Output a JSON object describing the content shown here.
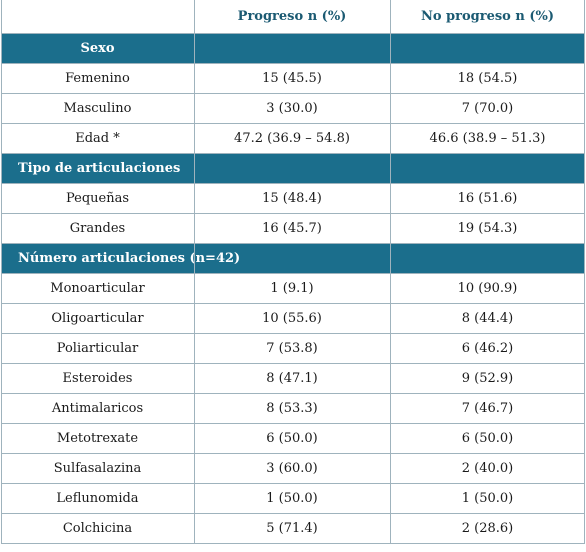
{
  "header": {
    "col2": "Progreso n (%)",
    "col3": "No progreso n (%)"
  },
  "sections": [
    {
      "title": "Sexo",
      "rows": [
        {
          "label": "Femenino",
          "progreso": "15 (45.5)",
          "no_progreso": "18 (54.5)"
        },
        {
          "label": "Masculino",
          "progreso": "3 (30.0)",
          "no_progreso": "7 (70.0)"
        },
        {
          "label": "Edad *",
          "progreso": "47.2 (36.9 – 54.8)",
          "no_progreso": "46.6 (38.9 – 51.3)"
        }
      ]
    },
    {
      "title": "Tipo de articulaciones",
      "rows": [
        {
          "label": "Pequeñas",
          "progreso": "15 (48.4)",
          "no_progreso": "16 (51.6)"
        },
        {
          "label": "Grandes",
          "progreso": "16 (45.7)",
          "no_progreso": "19 (54.3)"
        }
      ]
    },
    {
      "title": "Número articulaciones (n=42)",
      "rows": [
        {
          "label": "Monoarticular",
          "progreso": "1 (9.1)",
          "no_progreso": "10 (90.9)"
        },
        {
          "label": "Oligoarticular",
          "progreso": "10 (55.6)",
          "no_progreso": "8 (44.4)"
        },
        {
          "label": "Poliarticular",
          "progreso": "7 (53.8)",
          "no_progreso": "6 (46.2)"
        },
        {
          "label": "Esteroides",
          "progreso": "8 (47.1)",
          "no_progreso": "9 (52.9)"
        },
        {
          "label": "Antimalaricos",
          "progreso": "8 (53.3)",
          "no_progreso": "7 (46.7)"
        },
        {
          "label": "Metotrexate",
          "progreso": "6 (50.0)",
          "no_progreso": "6 (50.0)"
        },
        {
          "label": "Sulfasalazina",
          "progreso": "3 (60.0)",
          "no_progreso": "2 (40.0)"
        },
        {
          "label": "Leflunomida",
          "progreso": "1 (50.0)",
          "no_progreso": "1 (50.0)"
        },
        {
          "label": "Colchicina",
          "progreso": "5 (71.4)",
          "no_progreso": "2 (28.6)"
        }
      ]
    }
  ]
}
